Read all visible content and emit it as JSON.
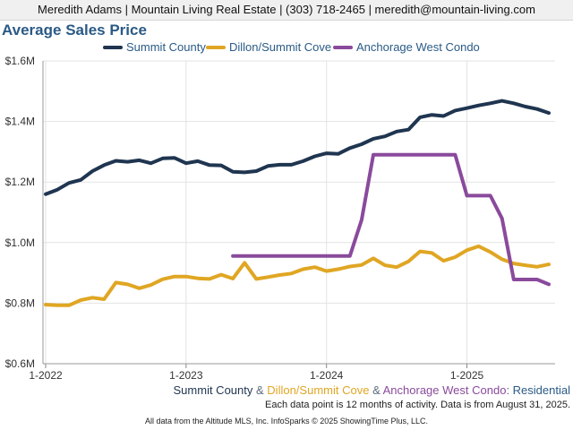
{
  "header": {
    "contact_line": "Meredith Adams | Mountain Living Real Estate | (303) 718-2465 | meredith@mountain-living.com"
  },
  "colors": {
    "header_bg": "#f0f0f0",
    "title": "#2a5a86",
    "summit": "#1f3550",
    "dillon": "#e0a623",
    "anchorage": "#8a4a9c",
    "grid": "#e3e3e3"
  },
  "footer": {
    "series_parts": [
      {
        "text": "Summit County",
        "color": "#1f3550"
      },
      {
        "text": " & ",
        "color": "#5a6b7c"
      },
      {
        "text": "Dillon/Summit Cove",
        "color": "#e0a623"
      },
      {
        "text": " & ",
        "color": "#5a6b7c"
      },
      {
        "text": "Anchorage West Condo",
        "color": "#8a4a9c"
      },
      {
        "text": ": ",
        "color": "#5a6b7c"
      },
      {
        "text": "Residential",
        "color": "#2a5a86"
      }
    ],
    "note": "Each data point is 12 months of activity. Data is from August 31, 2025.",
    "source": "All data from the Altitude MLS, Inc. InfoSparks © 2025 ShowingTime Plus, LLC."
  },
  "chart_data": {
    "type": "line",
    "title": "Average Sales Price",
    "xlabel": "",
    "ylabel": "",
    "ylim": [
      600000,
      1600000
    ],
    "y_ticks": [
      600000,
      800000,
      1000000,
      1200000,
      1400000,
      1600000
    ],
    "y_tick_labels": [
      "$0.6M",
      "$0.8M",
      "$1.0M",
      "$1.2M",
      "$1.4M",
      "$1.6M"
    ],
    "x_ticks": [
      "2022-01",
      "2023-01",
      "2024-01",
      "2025-01"
    ],
    "x_tick_labels": [
      "1-2022",
      "1-2023",
      "1-2024",
      "1-2025"
    ],
    "grid": true,
    "legend_position": "top",
    "series": [
      {
        "name": "Summit County",
        "color": "#1f3550",
        "x": [
          "2022-01",
          "2022-02",
          "2022-03",
          "2022-04",
          "2022-05",
          "2022-06",
          "2022-07",
          "2022-08",
          "2022-09",
          "2022-10",
          "2022-11",
          "2022-12",
          "2023-01",
          "2023-02",
          "2023-03",
          "2023-04",
          "2023-05",
          "2023-06",
          "2023-07",
          "2023-08",
          "2023-09",
          "2023-10",
          "2023-11",
          "2023-12",
          "2024-01",
          "2024-02",
          "2024-03",
          "2024-04",
          "2024-05",
          "2024-06",
          "2024-07",
          "2024-08",
          "2024-09",
          "2024-10",
          "2024-11",
          "2024-12",
          "2025-01",
          "2025-02",
          "2025-03",
          "2025-04",
          "2025-05",
          "2025-06",
          "2025-07",
          "2025-08"
        ],
        "values": [
          1160000,
          1175000,
          1197000,
          1207000,
          1236000,
          1256000,
          1270000,
          1267000,
          1272000,
          1262000,
          1278000,
          1280000,
          1262000,
          1269000,
          1256000,
          1255000,
          1234000,
          1232000,
          1236000,
          1253000,
          1257000,
          1257000,
          1269000,
          1285000,
          1295000,
          1293000,
          1312000,
          1325000,
          1343000,
          1351000,
          1367000,
          1373000,
          1414000,
          1422000,
          1418000,
          1436000,
          1444000,
          1453000,
          1460000,
          1468000,
          1460000,
          1449000,
          1441000,
          1428000
        ]
      },
      {
        "name": "Dillon/Summit Cove",
        "color": "#e0a623",
        "x": [
          "2022-01",
          "2022-02",
          "2022-03",
          "2022-04",
          "2022-05",
          "2022-06",
          "2022-07",
          "2022-08",
          "2022-09",
          "2022-10",
          "2022-11",
          "2022-12",
          "2023-01",
          "2023-02",
          "2023-03",
          "2023-04",
          "2023-05",
          "2023-06",
          "2023-07",
          "2023-08",
          "2023-09",
          "2023-10",
          "2023-11",
          "2023-12",
          "2024-01",
          "2024-02",
          "2024-03",
          "2024-04",
          "2024-05",
          "2024-06",
          "2024-07",
          "2024-08",
          "2024-09",
          "2024-10",
          "2024-11",
          "2024-12",
          "2025-01",
          "2025-02",
          "2025-03",
          "2025-04",
          "2025-05",
          "2025-06",
          "2025-07",
          "2025-08"
        ],
        "values": [
          795000,
          793000,
          793000,
          810000,
          818000,
          813000,
          868000,
          862000,
          849000,
          860000,
          879000,
          888000,
          888000,
          882000,
          880000,
          894000,
          881000,
          933000,
          880000,
          886000,
          893000,
          898000,
          912000,
          919000,
          906000,
          912000,
          921000,
          926000,
          948000,
          925000,
          919000,
          938000,
          971000,
          966000,
          940000,
          952000,
          975000,
          988000,
          969000,
          945000,
          931000,
          925000,
          920000,
          928000
        ]
      },
      {
        "name": "Anchorage West Condo",
        "color": "#8a4a9c",
        "x": [
          "2023-05",
          "2023-06",
          "2023-07",
          "2023-08",
          "2023-09",
          "2023-10",
          "2023-11",
          "2023-12",
          "2024-01",
          "2024-02",
          "2024-03",
          "2024-04",
          "2024-05",
          "2024-06",
          "2024-07",
          "2024-08",
          "2024-09",
          "2024-10",
          "2024-11",
          "2024-12",
          "2025-01",
          "2025-02",
          "2025-03",
          "2025-04",
          "2025-05",
          "2025-06",
          "2025-07",
          "2025-08"
        ],
        "values": [
          956000,
          956000,
          956000,
          956000,
          956000,
          956000,
          956000,
          956000,
          956000,
          956000,
          956000,
          1075000,
          1290000,
          1290000,
          1290000,
          1290000,
          1290000,
          1290000,
          1290000,
          1290000,
          1155000,
          1155000,
          1155000,
          1080000,
          878000,
          878000,
          878000,
          862000
        ]
      }
    ]
  }
}
